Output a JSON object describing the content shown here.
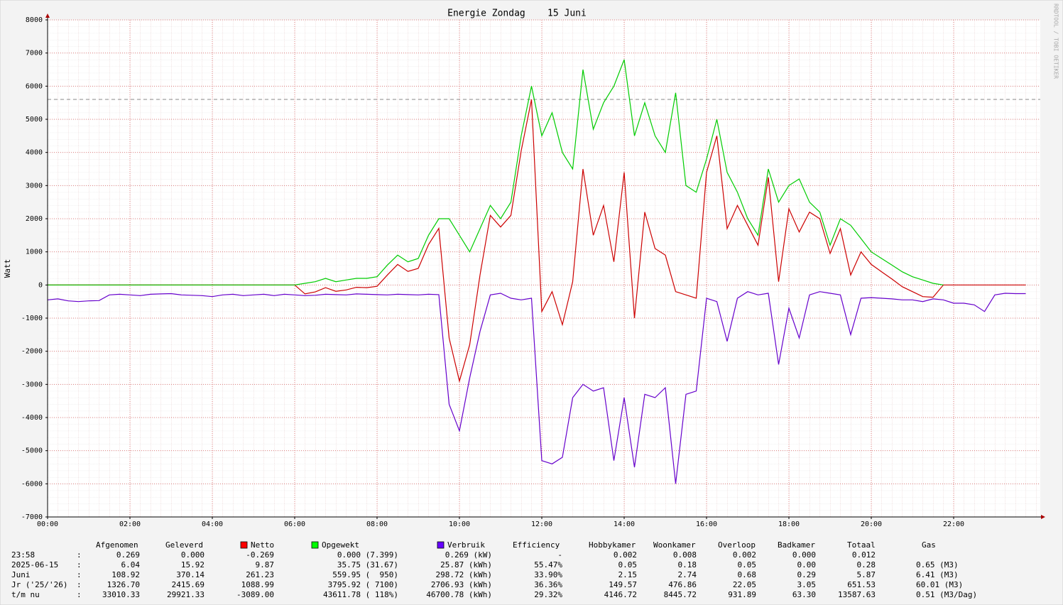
{
  "chart_data": {
    "type": "line",
    "title": "Energie Zondag    15 Juni",
    "y_label": "Watt",
    "watermark": "RRDTOOL / TOBI OETIKER",
    "x": [
      0,
      0.25,
      0.5,
      0.75,
      1,
      1.25,
      1.5,
      1.75,
      2,
      2.25,
      2.5,
      2.75,
      3,
      3.25,
      3.5,
      3.75,
      4,
      4.25,
      4.5,
      4.75,
      5,
      5.25,
      5.5,
      5.75,
      6,
      6.25,
      6.5,
      6.75,
      7,
      7.25,
      7.5,
      7.75,
      8,
      8.25,
      8.5,
      8.75,
      9,
      9.25,
      9.5,
      9.75,
      10,
      10.25,
      10.5,
      10.75,
      11,
      11.25,
      11.5,
      11.75,
      12,
      12.25,
      12.5,
      12.75,
      13,
      13.25,
      13.5,
      13.75,
      14,
      14.25,
      14.5,
      14.75,
      15,
      15.25,
      15.5,
      15.75,
      16,
      16.25,
      16.5,
      16.75,
      17,
      17.25,
      17.5,
      17.75,
      18,
      18.25,
      18.5,
      18.75,
      19,
      19.25,
      19.5,
      19.75,
      20,
      20.25,
      20.5,
      20.75,
      21,
      21.25,
      21.5,
      21.75,
      22,
      22.25,
      22.5,
      22.75,
      23,
      23.25,
      23.5,
      23.75
    ],
    "xlim": [
      0,
      24
    ],
    "xticks": [
      {
        "value": 0,
        "label": "00:00"
      },
      {
        "value": 2,
        "label": "02:00"
      },
      {
        "value": 4,
        "label": "04:00"
      },
      {
        "value": 6,
        "label": "06:00"
      },
      {
        "value": 8,
        "label": "08:00"
      },
      {
        "value": 10,
        "label": "10:00"
      },
      {
        "value": 12,
        "label": "12:00"
      },
      {
        "value": 14,
        "label": "14:00"
      },
      {
        "value": 16,
        "label": "16:00"
      },
      {
        "value": 18,
        "label": "18:00"
      },
      {
        "value": 20,
        "label": "20:00"
      },
      {
        "value": 22,
        "label": "22:00"
      }
    ],
    "ylim": [
      -7000,
      8000
    ],
    "yticks": [
      8000,
      7000,
      6000,
      5000,
      4000,
      3000,
      2000,
      1000,
      0,
      -1000,
      -2000,
      -3000,
      -4000,
      -5000,
      -6000,
      -7000
    ],
    "grid": true,
    "hline": 5600,
    "series": [
      {
        "name": "Netto",
        "color": "#cc0000",
        "swatch": "#ff0000",
        "values": [
          0,
          0,
          0,
          0,
          0,
          0,
          0,
          0,
          0,
          0,
          0,
          0,
          0,
          0,
          0,
          0,
          0,
          0,
          0,
          0,
          0,
          0,
          0,
          0,
          0,
          -270,
          -210,
          -80,
          -190,
          -150,
          -70,
          -80,
          -40,
          300,
          620,
          410,
          500,
          1220,
          1710,
          -1600,
          -2900,
          -1800,
          300,
          2100,
          1750,
          2100,
          4050,
          5600,
          -800,
          -200,
          -1200,
          100,
          3500,
          1500,
          2400,
          700,
          3400,
          -1000,
          2200,
          1100,
          900,
          -200,
          -300,
          -400,
          3400,
          4500,
          1700,
          2400,
          1800,
          1200,
          3250,
          100,
          2300,
          1600,
          2200,
          2000,
          950,
          1700,
          300,
          1000,
          620,
          400,
          180,
          -50,
          -200,
          -350,
          -370,
          0,
          0,
          0,
          0,
          0,
          0,
          0,
          0,
          0
        ]
      },
      {
        "name": "Opgewekt",
        "color": "#00cc00",
        "swatch": "#00ff00",
        "values": [
          0,
          0,
          0,
          0,
          0,
          0,
          0,
          0,
          0,
          0,
          0,
          0,
          0,
          0,
          0,
          0,
          0,
          0,
          0,
          0,
          0,
          0,
          0,
          0,
          0,
          50,
          100,
          200,
          100,
          150,
          200,
          200,
          250,
          600,
          900,
          700,
          800,
          1500,
          2000,
          2000,
          1500,
          1000,
          1700,
          2400,
          2000,
          2500,
          4500,
          6000,
          4500,
          5200,
          4000,
          3500,
          6500,
          4700,
          5500,
          6000,
          6800,
          4500,
          5500,
          4500,
          4000,
          5800,
          3000,
          2800,
          3800,
          5000,
          3400,
          2800,
          2000,
          1500,
          3500,
          2500,
          3000,
          3200,
          2500,
          2200,
          1200,
          2000,
          1800,
          1400,
          1000,
          800,
          600,
          400,
          250,
          150,
          50,
          0,
          null,
          null,
          null,
          null,
          null,
          null,
          null,
          null
        ]
      },
      {
        "name": "Verbruik",
        "color": "#6600cc",
        "swatch": "#6600ff",
        "values": [
          -450,
          -420,
          -480,
          -500,
          -480,
          -470,
          -300,
          -280,
          -300,
          -320,
          -280,
          -270,
          -260,
          -300,
          -310,
          -320,
          -350,
          -300,
          -280,
          -320,
          -300,
          -280,
          -320,
          -280,
          -300,
          -320,
          -310,
          -280,
          -290,
          -300,
          -270,
          -280,
          -290,
          -300,
          -280,
          -290,
          -300,
          -280,
          -290,
          -3600,
          -4400,
          -2800,
          -1400,
          -300,
          -250,
          -400,
          -450,
          -400,
          -5300,
          -5400,
          -5200,
          -3400,
          -3000,
          -3200,
          -3100,
          -5300,
          -3400,
          -5500,
          -3300,
          -3400,
          -3100,
          -6000,
          -3300,
          -3200,
          -400,
          -500,
          -1700,
          -400,
          -200,
          -300,
          -250,
          -2400,
          -700,
          -1600,
          -300,
          -200,
          -250,
          -300,
          -1500,
          -400,
          -380,
          -400,
          -420,
          -450,
          -450,
          -500,
          -420,
          -450,
          -550,
          -550,
          -600,
          -800,
          -300,
          -250,
          -260,
          -260
        ]
      }
    ]
  },
  "table": {
    "headers": [
      "Afgenomen",
      "Geleverd",
      "Efficiency",
      "Hobbykamer",
      "Woonkamer",
      "Overloop",
      "Badkamer",
      "Totaal",
      "Gas"
    ],
    "separator": ":",
    "rows": [
      {
        "label": "23:58",
        "cells": [
          "0.269",
          "0.000",
          "-0.269",
          "0.000 (7.399)",
          "0.269 (kW)",
          "-",
          "0.002",
          "0.008",
          "0.002",
          "0.000",
          "0.012"
        ]
      },
      {
        "label": "2025-06-15",
        "cells": [
          "6.04",
          "15.92",
          "9.87",
          "35.75 (31.67)",
          "25.87 (kWh)",
          "55.47%",
          "0.05",
          "0.18",
          "0.05",
          "0.00",
          "0.28",
          "0.65 (M3)"
        ]
      },
      {
        "label": "Juni",
        "cells": [
          "108.92",
          "370.14",
          "261.23",
          "559.95 (  950)",
          "298.72 (kWh)",
          "33.90%",
          "2.15",
          "2.74",
          "0.68",
          "0.29",
          "5.87",
          "6.41 (M3)"
        ]
      },
      {
        "label": "Jr ('25/'26)",
        "cells": [
          "1326.70",
          "2415.69",
          "1088.99",
          "3795.92 ( 7100)",
          "2706.93 (kWh)",
          "36.36%",
          "149.57",
          "476.86",
          "22.05",
          "3.05",
          "651.53",
          "60.01 (M3)"
        ]
      },
      {
        "label": "t/m nu",
        "cells": [
          "33010.33",
          "29921.33",
          "-3089.00",
          "43611.78 ( 118%)",
          "46700.78 (kWh)",
          "29.32%",
          "4146.72",
          "8445.72",
          "931.89",
          "63.30",
          "13587.63",
          "0.51 (M3/Dag)"
        ]
      }
    ]
  }
}
